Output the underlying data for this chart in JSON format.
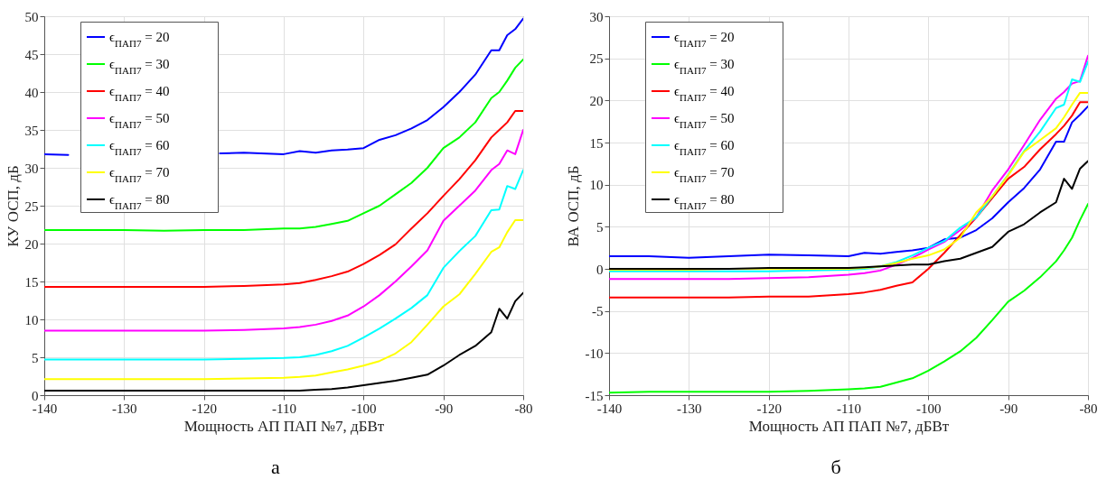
{
  "chart_data": [
    {
      "type": "line",
      "xlabel": "Мощность АП ПАП №7, дБВт",
      "ylabel": "КУ ОСП, дБ",
      "annotations": [
        "а"
      ],
      "x": [
        -140,
        -135,
        -130,
        -125,
        -120,
        -115,
        -110,
        -108,
        -106,
        -104,
        -102,
        -100,
        -98,
        -96,
        -94,
        -92,
        -90,
        -88,
        -86,
        -84,
        -83,
        -82,
        -81,
        -80
      ],
      "xlim": [
        -140,
        -80
      ],
      "xticks": [
        -140,
        -130,
        -120,
        -110,
        -100,
        -90,
        -80
      ],
      "ylim": [
        0,
        50
      ],
      "yticks": [
        0,
        5,
        10,
        15,
        20,
        25,
        30,
        35,
        40,
        45,
        50
      ],
      "grid": true,
      "legend": "top left",
      "series": [
        {
          "name": "ϵ$_{ПАП7}$ = 20",
          "color": "#0000ff",
          "x": [
            -140,
            -137,
            -135,
            -130,
            -125,
            -118,
            -115,
            -110,
            -108,
            -106,
            -104,
            -102,
            -100,
            -98,
            -96,
            -94,
            -92,
            -90,
            -88,
            -86,
            -84,
            -83,
            -82,
            -81,
            -80
          ],
          "values": [
            31.8,
            31.7,
            null,
            null,
            null,
            31.9,
            32,
            31.8,
            32.2,
            32,
            32.3,
            32.4,
            32.6,
            33.7,
            34.3,
            35.2,
            36.3,
            38,
            40,
            42.3,
            45.5,
            45.5,
            47.5,
            48.3,
            49.7
          ]
        },
        {
          "name": "ϵ$_{ПАП7}$ = 30",
          "color": "#00ff00",
          "values": [
            21.8,
            21.8,
            21.8,
            21.7,
            21.8,
            21.8,
            22,
            22,
            22.2,
            22.6,
            23,
            24,
            25,
            26.5,
            28,
            30,
            32.6,
            34,
            36,
            39.2,
            40,
            41.5,
            43.2,
            44.3
          ]
        },
        {
          "name": "ϵ$_{ПАП7}$ = 40",
          "color": "#ff0000",
          "values": [
            14.3,
            14.3,
            14.3,
            14.3,
            14.3,
            14.4,
            14.6,
            14.8,
            15.2,
            15.7,
            16.3,
            17.3,
            18.5,
            19.9,
            22,
            24,
            26.3,
            28.5,
            31,
            34,
            35,
            36,
            37.5,
            37.5
          ]
        },
        {
          "name": "ϵ$_{ПАП7}$ = 50",
          "color": "#ff00ff",
          "values": [
            8.5,
            8.5,
            8.5,
            8.5,
            8.5,
            8.6,
            8.8,
            9,
            9.3,
            9.8,
            10.5,
            11.7,
            13.2,
            15,
            17,
            19.1,
            23,
            25,
            27,
            29.7,
            30.5,
            32.3,
            31.8,
            35
          ]
        },
        {
          "name": "ϵ$_{ПАП7}$ = 60",
          "color": "#00ffff",
          "values": [
            4.7,
            4.7,
            4.7,
            4.7,
            4.7,
            4.8,
            4.9,
            5,
            5.3,
            5.8,
            6.5,
            7.6,
            8.8,
            10.1,
            11.5,
            13.2,
            16.8,
            19,
            21,
            24.4,
            24.5,
            27.6,
            27.2,
            29.7
          ]
        },
        {
          "name": "ϵ$_{ПАП7}$ = 70",
          "color": "#ffff00",
          "values": [
            2.1,
            2.1,
            2.1,
            2.1,
            2.1,
            2.2,
            2.3,
            2.4,
            2.6,
            3,
            3.4,
            3.9,
            4.5,
            5.5,
            7,
            9.3,
            11.7,
            13.3,
            16,
            18.9,
            19.5,
            21.5,
            23.1,
            23.1
          ]
        },
        {
          "name": "ϵ$_{ПАП7}$ = 80",
          "color": "#000000",
          "values": [
            0.6,
            0.6,
            0.6,
            0.6,
            0.6,
            0.6,
            0.6,
            0.6,
            0.7,
            0.8,
            1,
            1.3,
            1.6,
            1.9,
            2.3,
            2.7,
            3.9,
            5.3,
            6.5,
            8.3,
            11.4,
            10.1,
            12.4,
            13.5
          ]
        }
      ]
    },
    {
      "type": "line",
      "xlabel": "Мощность АП ПАП №7, дБВт",
      "ylabel": "ВА ОСП, дБ",
      "annotations": [
        "б"
      ],
      "x": [
        -140,
        -135,
        -130,
        -125,
        -120,
        -115,
        -110,
        -108,
        -106,
        -104,
        -102,
        -100,
        -98,
        -96,
        -94,
        -92,
        -90,
        -88,
        -86,
        -84,
        -83,
        -82,
        -81,
        -80
      ],
      "xlim": [
        -140,
        -80
      ],
      "xticks": [
        -140,
        -130,
        -120,
        -110,
        -100,
        -90,
        -80
      ],
      "ylim": [
        -15,
        30
      ],
      "yticks": [
        -15,
        -10,
        -5,
        0,
        5,
        10,
        15,
        20,
        25,
        30
      ],
      "grid": true,
      "legend": "top left",
      "series": [
        {
          "name": "ϵ$_{ПАП7}$ = 20",
          "color": "#0000ff",
          "values": [
            1.5,
            1.5,
            1.3,
            1.5,
            1.7,
            1.6,
            1.5,
            1.9,
            1.8,
            2,
            2.2,
            2.5,
            3.5,
            3.7,
            4.6,
            6,
            7.9,
            9.6,
            11.8,
            15.1,
            15.1,
            17.4,
            18.3,
            19.3
          ]
        },
        {
          "name": "ϵ$_{ПАП7}$ = 30",
          "color": "#00ff00",
          "values": [
            -14.7,
            -14.6,
            -14.6,
            -14.6,
            -14.6,
            -14.5,
            -14.3,
            -14.2,
            -14,
            -13.5,
            -13,
            -12.1,
            -11,
            -9.8,
            -8.2,
            -6.1,
            -3.9,
            -2.6,
            -1,
            0.9,
            2.2,
            3.7,
            5.8,
            7.7
          ]
        },
        {
          "name": "ϵ$_{ПАП7}$ = 40",
          "color": "#ff0000",
          "values": [
            -3.4,
            -3.4,
            -3.4,
            -3.4,
            -3.3,
            -3.3,
            -3,
            -2.8,
            -2.5,
            -2,
            -1.6,
            0,
            1.9,
            4,
            6.1,
            8.4,
            10.7,
            12.1,
            14.2,
            16,
            17,
            18.2,
            19.8,
            19.8
          ]
        },
        {
          "name": "ϵ$_{ПАП7}$ = 50",
          "color": "#ff00ff",
          "values": [
            -1.2,
            -1.2,
            -1.2,
            -1.2,
            -1.1,
            -1,
            -0.7,
            -0.5,
            -0.2,
            0.5,
            1.3,
            2.3,
            3.2,
            4.6,
            6.1,
            9.3,
            11.8,
            14.7,
            17.7,
            20.2,
            21,
            22,
            22.3,
            25.3
          ]
        },
        {
          "name": "ϵ$_{ПАП7}$ = 60",
          "color": "#00ffff",
          "values": [
            -0.3,
            -0.3,
            -0.3,
            -0.3,
            -0.3,
            -0.2,
            -0.1,
            0,
            0.3,
            0.8,
            1.6,
            2.5,
            3.3,
            4.9,
            6.1,
            8.6,
            11.2,
            14,
            16.3,
            19.1,
            19.5,
            22.5,
            22.2,
            24.6
          ]
        },
        {
          "name": "ϵ$_{ПАП7}$ = 70",
          "color": "#ffff00",
          "values": [
            -0.1,
            -0.1,
            -0.1,
            0,
            0,
            0,
            0,
            0.1,
            0.3,
            0.7,
            1.2,
            1.6,
            2.3,
            3.7,
            6.7,
            8.6,
            11.1,
            13.9,
            15.3,
            16.7,
            18,
            19.5,
            20.9,
            20.9
          ]
        },
        {
          "name": "ϵ$_{ПАП7}$ = 80",
          "color": "#000000",
          "values": [
            0,
            0,
            0,
            0,
            0.1,
            0.1,
            0.1,
            0.2,
            0.3,
            0.4,
            0.5,
            0.5,
            0.9,
            1.2,
            1.9,
            2.6,
            4.4,
            5.3,
            6.7,
            7.9,
            10.7,
            9.5,
            11.9,
            12.8
          ]
        }
      ]
    }
  ]
}
